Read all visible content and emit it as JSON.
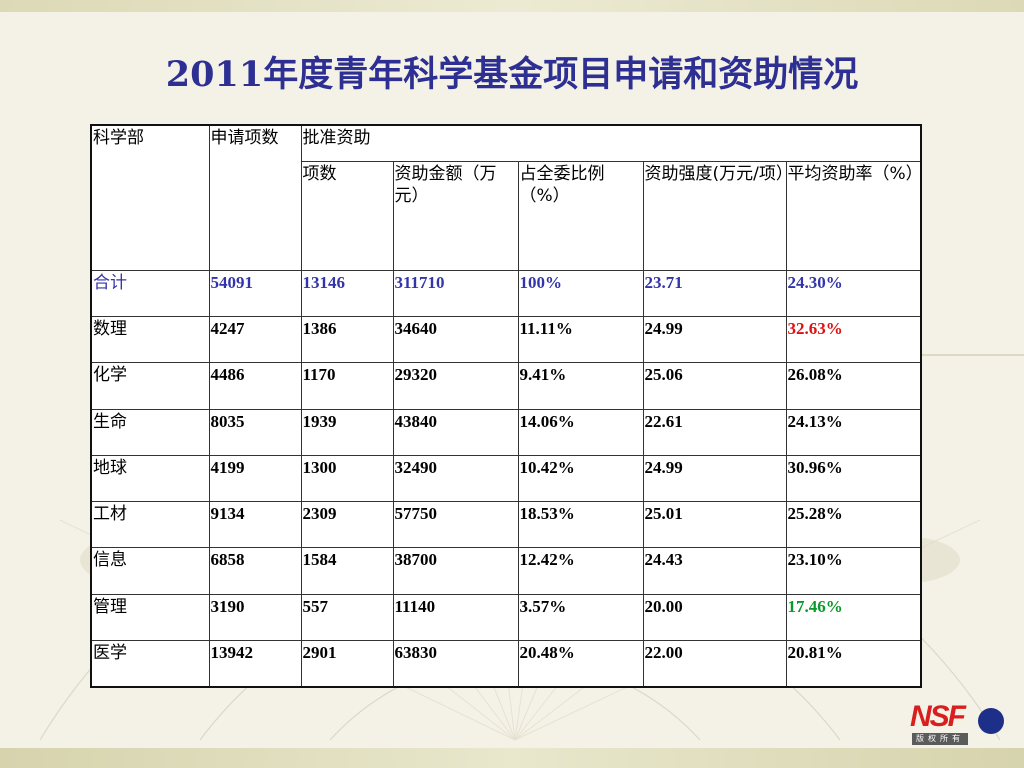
{
  "title": "2011年度青年科学基金项目申请和资助情况",
  "table": {
    "header": {
      "dept": "科学部",
      "applications": "申请项数",
      "approved_group": "批准资助",
      "items": "项数",
      "amount": "资助金额（万元）",
      "share": "占全委比例（%）",
      "intensity": " 资助强度(万元/项）",
      "rate": "平均资助率（%）"
    },
    "rows": [
      {
        "dept": "合计",
        "apps": "54091",
        "items": "13146",
        "amount": "311710",
        "share": "100%",
        "intensity": "23.71",
        "rate": "24.30%"
      },
      {
        "dept": "数理",
        "apps": "4247",
        "items": "1386",
        "amount": "34640",
        "share": "11.11%",
        "intensity": "24.99",
        "rate": "32.63%"
      },
      {
        "dept": "化学",
        "apps": "4486",
        "items": "1170",
        "amount": "29320",
        "share": "9.41%",
        "intensity": "25.06",
        "rate": "26.08%"
      },
      {
        "dept": "生命",
        "apps": "8035",
        "items": "1939",
        "amount": "43840",
        "share": "14.06%",
        "intensity": "22.61",
        "rate": "24.13%"
      },
      {
        "dept": "地球",
        "apps": "4199",
        "items": "1300",
        "amount": "32490",
        "share": "10.42%",
        "intensity": "24.99",
        "rate": "30.96%"
      },
      {
        "dept": "工材",
        "apps": "9134",
        "items": "2309",
        "amount": "57750",
        "share": "18.53%",
        "intensity": "25.01",
        "rate": "25.28%"
      },
      {
        "dept": "信息",
        "apps": "6858",
        "items": "1584",
        "amount": "38700",
        "share": "12.42%",
        "intensity": "24.43",
        "rate": "23.10%"
      },
      {
        "dept": "管理",
        "apps": "3190",
        "items": "557",
        "amount": "11140",
        "share": "3.57%",
        "intensity": "20.00",
        "rate": "17.46%"
      },
      {
        "dept": "医学",
        "apps": "13942",
        "items": "2901",
        "amount": "63830",
        "share": "20.48%",
        "intensity": "22.00",
        "rate": "20.81%"
      }
    ]
  },
  "highlight_colors": {
    "total": "#3333aa",
    "max_rate": "#dd1111",
    "min_rate": "#0a9a2a"
  },
  "logo": {
    "text": "NSF",
    "sub": "版权所有"
  }
}
